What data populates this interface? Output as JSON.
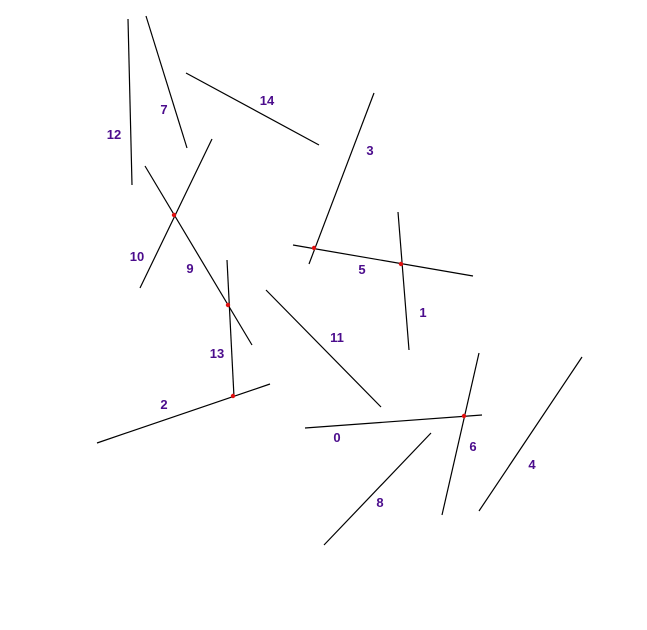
{
  "colors": {
    "line": "#000000",
    "label": "#4b0c8c",
    "intersection": "#e01010"
  },
  "segments": [
    {
      "label": "0"
    },
    {
      "label": "1"
    },
    {
      "label": "2"
    },
    {
      "label": "3"
    },
    {
      "label": "4"
    },
    {
      "label": "5"
    },
    {
      "label": "6"
    },
    {
      "label": "7"
    },
    {
      "label": "8"
    },
    {
      "label": "9"
    },
    {
      "label": "10"
    },
    {
      "label": "11"
    },
    {
      "label": "12"
    },
    {
      "label": "13"
    },
    {
      "label": "14"
    }
  ],
  "intersections": [
    {
      "between": [
        "9",
        "10"
      ]
    },
    {
      "between": [
        "9",
        "13"
      ]
    },
    {
      "between": [
        "2",
        "13"
      ]
    },
    {
      "between": [
        "3",
        "5"
      ]
    },
    {
      "between": [
        "1",
        "5"
      ]
    },
    {
      "between": [
        "0",
        "6"
      ]
    }
  ]
}
